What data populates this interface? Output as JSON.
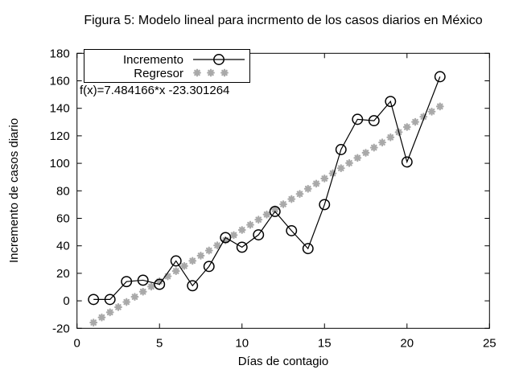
{
  "figure": {
    "title": "Figura 5: Modelo lineal para incrmento de los casos diarios en México"
  },
  "chart_data": {
    "type": "line",
    "title": "Figura 5: Modelo lineal para incrmento de los casos diarios en México",
    "xlabel": "Días de contagio",
    "ylabel": "Incremento de casos diario",
    "xlim": [
      0,
      25
    ],
    "ylim": [
      -20,
      180
    ],
    "xticks": [
      0,
      5,
      10,
      15,
      20,
      25
    ],
    "yticks": [
      -20,
      0,
      20,
      40,
      60,
      80,
      100,
      120,
      140,
      160,
      180
    ],
    "grid": false,
    "legend_position": "top-left",
    "annotation": "f(x)=7.484166*x -23.301264",
    "colors": {
      "incremento": "#000000",
      "regresor": "#a9a9a9"
    },
    "series": [
      {
        "name": "Incremento",
        "style": "linespoints",
        "marker": "circle",
        "color": "#000000",
        "x": [
          1,
          2,
          3,
          4,
          5,
          6,
          7,
          8,
          9,
          10,
          11,
          12,
          13,
          14,
          15,
          16,
          17,
          18,
          19,
          20,
          22
        ],
        "y": [
          1,
          1,
          14,
          15,
          12,
          29,
          11,
          25,
          46,
          39,
          48,
          65,
          51,
          38,
          70,
          110,
          132,
          131,
          145,
          101,
          163
        ]
      },
      {
        "name": "Regresor",
        "style": "points",
        "marker": "asterisk",
        "color": "#a9a9a9",
        "regression": {
          "slope": 7.484166,
          "intercept": -23.301264,
          "x_start": 1,
          "x_end": 22,
          "x_step": 0.5
        }
      }
    ]
  }
}
